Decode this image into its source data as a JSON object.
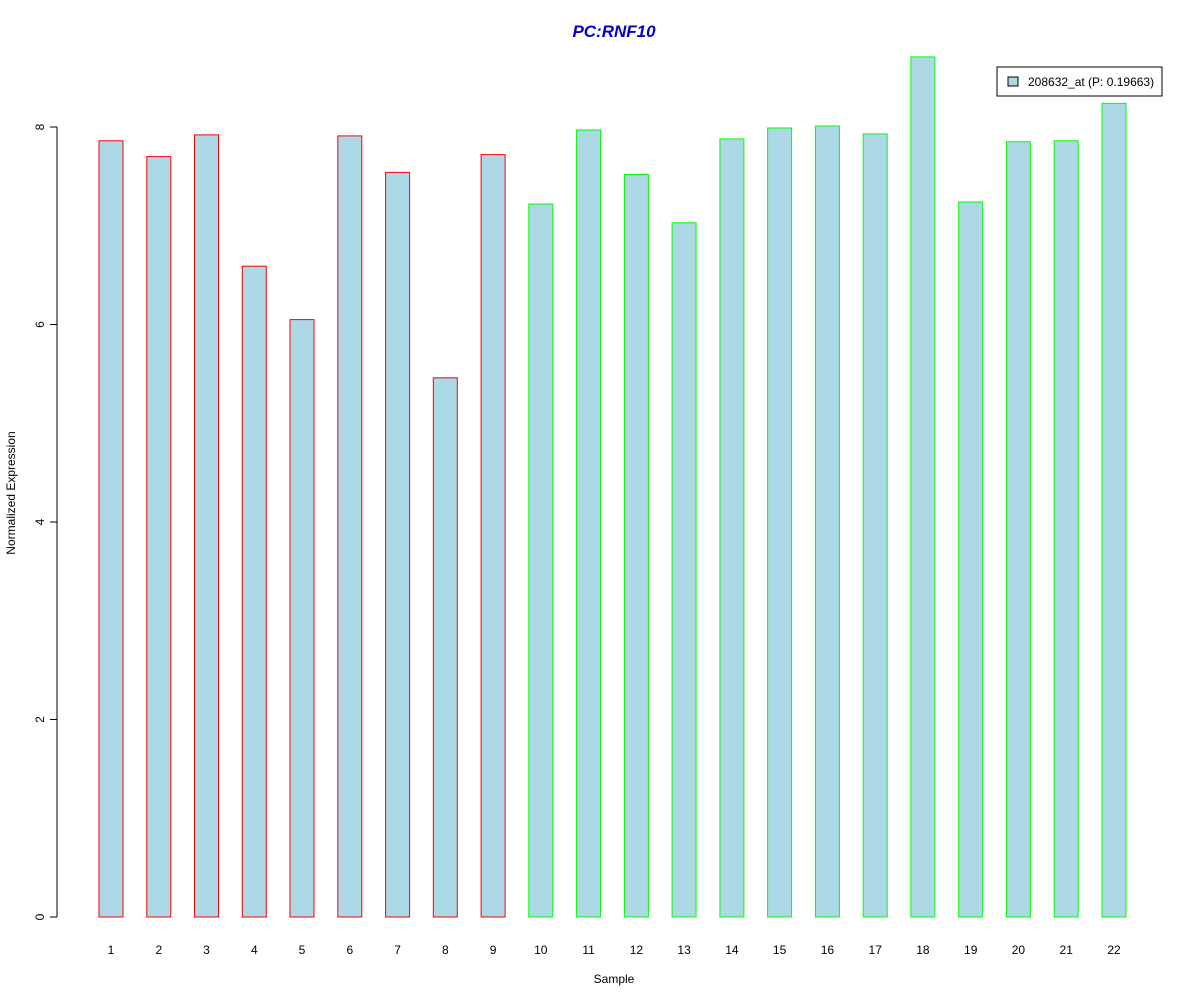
{
  "chart_data": {
    "type": "bar",
    "title": "PC:RNF10",
    "xlabel": "Sample",
    "ylabel": "Normalized Expression",
    "categories": [
      "1",
      "2",
      "3",
      "4",
      "5",
      "6",
      "7",
      "8",
      "9",
      "10",
      "11",
      "12",
      "13",
      "14",
      "15",
      "16",
      "17",
      "18",
      "19",
      "20",
      "21",
      "22"
    ],
    "series": [
      {
        "name": "208632_at (P: 0.19663)",
        "values": [
          7.86,
          7.7,
          7.92,
          6.59,
          6.05,
          7.91,
          7.54,
          5.46,
          7.72,
          7.22,
          7.97,
          7.52,
          7.03,
          7.88,
          7.99,
          8.01,
          7.93,
          8.71,
          7.24,
          7.85,
          7.86,
          8.24
        ]
      }
    ],
    "groups": [
      "red",
      "red",
      "red",
      "red",
      "red",
      "red",
      "red",
      "red",
      "red",
      "green",
      "green",
      "green",
      "green",
      "green",
      "green",
      "green",
      "green",
      "green",
      "green",
      "green",
      "green",
      "green"
    ],
    "yticks": [
      "0",
      "2",
      "4",
      "6",
      "8"
    ],
    "ylim": [
      0,
      8.8
    ],
    "legend_position": "top-right",
    "colors": {
      "fill": "#add8e6",
      "red": "#ff0000",
      "green": "#00ff00",
      "title": "#0000cc",
      "axis": "#000000"
    }
  }
}
